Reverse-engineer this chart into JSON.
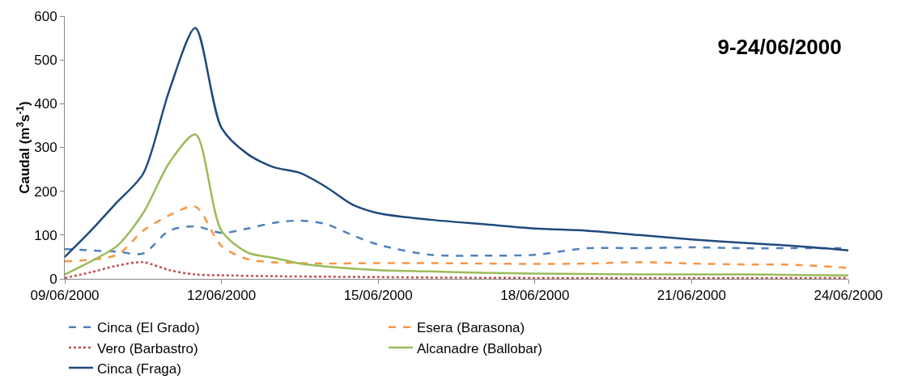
{
  "chart_data": {
    "type": "line",
    "title": "9-24/06/2000",
    "ylabel": "Caudal (m$^{3}$s$^{-1}$)",
    "xlim": [
      "2000-06-09",
      "2000-06-24"
    ],
    "xticks": [
      {
        "value": "2000-06-09",
        "label": "09/06/2000"
      },
      {
        "value": "2000-06-12",
        "label": "12/06/2000"
      },
      {
        "value": "2000-06-15",
        "label": "15/06/2000"
      },
      {
        "value": "2000-06-18",
        "label": "18/06/2000"
      },
      {
        "value": "2000-06-21",
        "label": "21/06/2000"
      },
      {
        "value": "2000-06-24",
        "label": "24/06/2000"
      }
    ],
    "ylim": [
      0,
      600
    ],
    "yticks": [
      0,
      100,
      200,
      300,
      400,
      500,
      600
    ],
    "grid": false,
    "legend": "bottom",
    "marker": "none",
    "series": [
      {
        "name": "Cinca (El Grado)",
        "color": "#4f81bd",
        "line_style": "dashed",
        "x": [
          "2000-06-09",
          "2000-06-10",
          "2000-06-10T12:00",
          "2000-06-11",
          "2000-06-11T12:00",
          "2000-06-12",
          "2000-06-12T12:00",
          "2000-06-13",
          "2000-06-13T12:00",
          "2000-06-14",
          "2000-06-14T12:00",
          "2000-06-15",
          "2000-06-16",
          "2000-06-17",
          "2000-06-18",
          "2000-06-19",
          "2000-06-20",
          "2000-06-21",
          "2000-06-22",
          "2000-06-23",
          "2000-06-24"
        ],
        "values": [
          68,
          62,
          58,
          110,
          120,
          105,
          115,
          128,
          133,
          125,
          100,
          78,
          55,
          53,
          55,
          70,
          70,
          72,
          70,
          70,
          70
        ]
      },
      {
        "name": "Esera (Barasona)",
        "color": "#f79646",
        "line_style": "dashed",
        "x": [
          "2000-06-09",
          "2000-06-10",
          "2000-06-10T12:00",
          "2000-06-11",
          "2000-06-11T12:00",
          "2000-06-12",
          "2000-06-12T12:00",
          "2000-06-13",
          "2000-06-14",
          "2000-06-15",
          "2000-06-16",
          "2000-06-17",
          "2000-06-18",
          "2000-06-19",
          "2000-06-20",
          "2000-06-21",
          "2000-06-22",
          "2000-06-23",
          "2000-06-24"
        ],
        "values": [
          40,
          55,
          110,
          145,
          165,
          75,
          45,
          38,
          35,
          36,
          36,
          35,
          34,
          35,
          38,
          35,
          33,
          32,
          25
        ]
      },
      {
        "name": "Vero (Barbastro)",
        "color": "#c0504d",
        "line_style": "dotted",
        "x": [
          "2000-06-09",
          "2000-06-09T12:00",
          "2000-06-10",
          "2000-06-10T12:00",
          "2000-06-11",
          "2000-06-11T12:00",
          "2000-06-12",
          "2000-06-13",
          "2000-06-14",
          "2000-06-15",
          "2000-06-16",
          "2000-06-18",
          "2000-06-20",
          "2000-06-22",
          "2000-06-24"
        ],
        "values": [
          2,
          15,
          30,
          38,
          20,
          10,
          8,
          6,
          5,
          4,
          3,
          2,
          2,
          2,
          2
        ]
      },
      {
        "name": "Alcanadre (Ballobar)",
        "color": "#9bbb59",
        "line_style": "solid",
        "x": [
          "2000-06-09",
          "2000-06-09T12:00",
          "2000-06-10",
          "2000-06-10T12:00",
          "2000-06-11",
          "2000-06-11T12:00",
          "2000-06-12",
          "2000-06-12T12:00",
          "2000-06-13",
          "2000-06-13T12:00",
          "2000-06-14",
          "2000-06-15",
          "2000-06-16",
          "2000-06-17",
          "2000-06-18",
          "2000-06-19",
          "2000-06-20",
          "2000-06-21",
          "2000-06-22",
          "2000-06-23",
          "2000-06-24"
        ],
        "values": [
          10,
          40,
          75,
          150,
          265,
          330,
          110,
          60,
          48,
          35,
          28,
          20,
          17,
          14,
          12,
          11,
          10,
          10,
          10,
          9,
          8
        ]
      },
      {
        "name": "Cinca (Fraga)",
        "color": "#1f497d",
        "line_style": "solid",
        "x": [
          "2000-06-09",
          "2000-06-09T12:00",
          "2000-06-10",
          "2000-06-10T12:00",
          "2000-06-11",
          "2000-06-11T12:00",
          "2000-06-12",
          "2000-06-12T12:00",
          "2000-06-13",
          "2000-06-13T12:00",
          "2000-06-14",
          "2000-06-14T12:00",
          "2000-06-15",
          "2000-06-16",
          "2000-06-17",
          "2000-06-18",
          "2000-06-19",
          "2000-06-20",
          "2000-06-21",
          "2000-06-22",
          "2000-06-23",
          "2000-06-24"
        ],
        "values": [
          50,
          110,
          175,
          240,
          430,
          573,
          345,
          285,
          255,
          242,
          210,
          170,
          150,
          135,
          125,
          115,
          110,
          100,
          90,
          82,
          75,
          65
        ]
      }
    ]
  }
}
